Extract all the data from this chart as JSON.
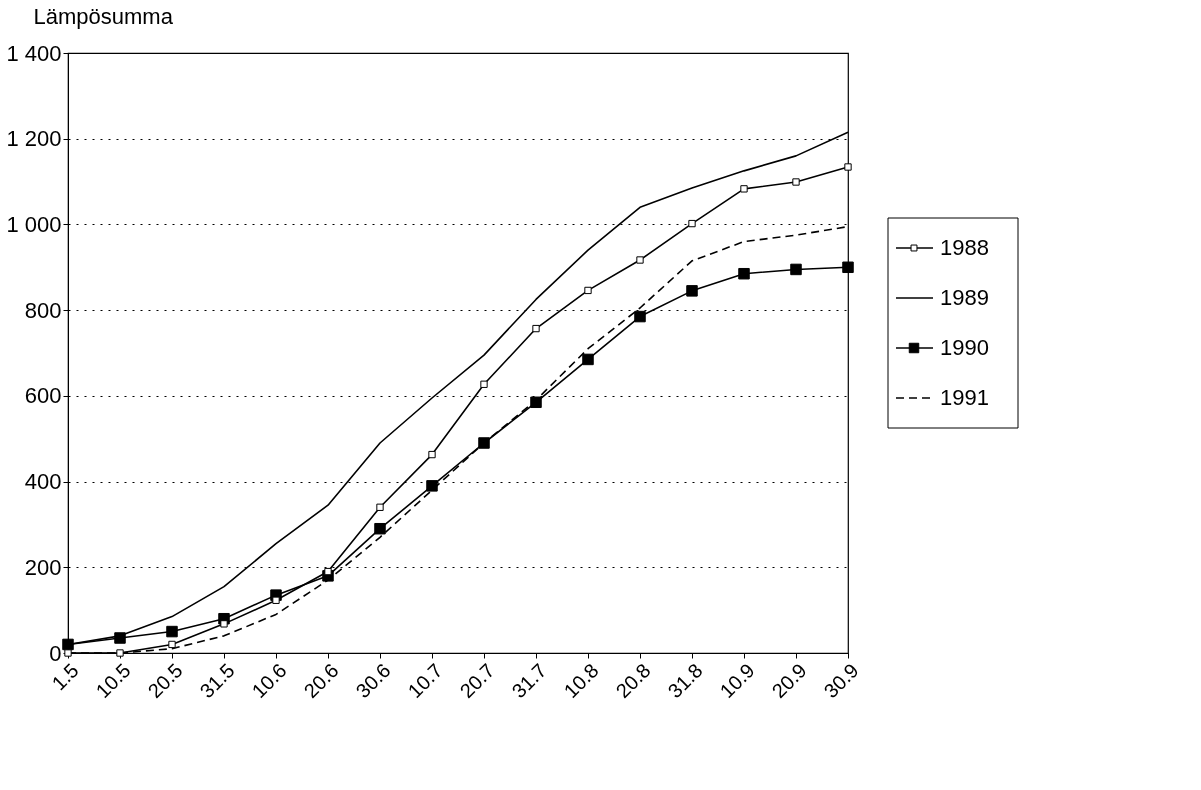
{
  "chart_data": {
    "type": "line",
    "ylabel": "Lämpösumma",
    "categories": [
      "1.5",
      "10.5",
      "20.5",
      "31.5",
      "10.6",
      "20.6",
      "30.6",
      "10.7",
      "20.7",
      "31.7",
      "10.8",
      "20.8",
      "31.8",
      "10.9",
      "20.9",
      "30.9"
    ],
    "series": [
      {
        "name": "1988",
        "color": "#000000",
        "marker": "square_open",
        "line_style": "solid",
        "values": [
          0,
          0,
          20,
          68,
          123,
          190,
          340,
          463,
          627,
          757,
          846,
          917,
          1002,
          1083,
          1099,
          1134
        ]
      },
      {
        "name": "1989",
        "color": "#000000",
        "marker": "none",
        "line_style": "solid",
        "values": [
          20,
          40,
          85,
          155,
          255,
          345,
          490,
          595,
          695,
          825,
          940,
          1040,
          1085,
          1125,
          1160,
          1215
        ]
      },
      {
        "name": "1990",
        "color": "#000000",
        "marker": "square",
        "line_style": "solid",
        "values": [
          20,
          35,
          50,
          80,
          135,
          180,
          290,
          390,
          490,
          585,
          685,
          785,
          845,
          885,
          895,
          900
        ]
      },
      {
        "name": "1991",
        "color": "#000000",
        "marker": "none",
        "line_style": "dashed",
        "values": [
          0,
          0,
          10,
          40,
          90,
          170,
          270,
          380,
          490,
          590,
          710,
          805,
          915,
          960,
          975,
          995
        ]
      }
    ],
    "ylim": [
      0,
      1400
    ],
    "yticks": [
      0,
      200,
      400,
      600,
      800,
      {
        "value": 1000,
        "label": "1 000"
      },
      {
        "value": 1200,
        "label": "1 200"
      },
      {
        "value": 1400,
        "label": "1 400"
      }
    ],
    "grid": "y",
    "legend": "right"
  }
}
